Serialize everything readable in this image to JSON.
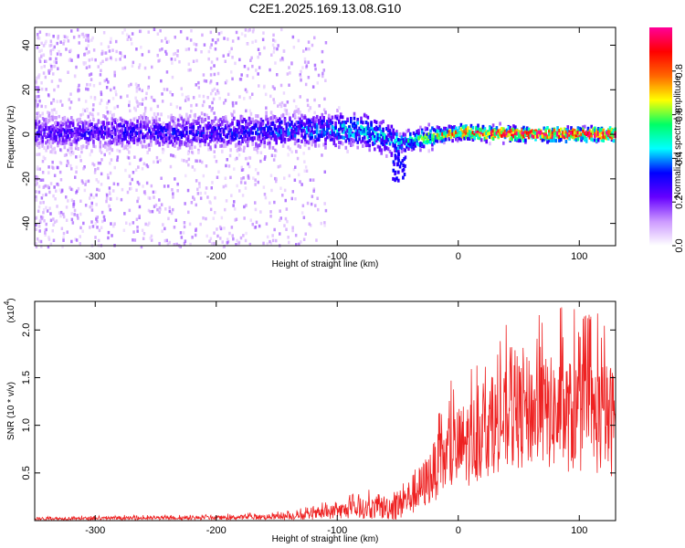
{
  "figure_title": "C2E1.2025.169.13.08.G10",
  "chart_data": [
    {
      "type": "heatmap",
      "title": "C2E1.2025.169.13.08.G10",
      "xlabel": "Height of straight line (km)",
      "ylabel": "Frequency (Hz)",
      "xlim": [
        -350,
        130
      ],
      "ylim": [
        -50,
        48
      ],
      "xticks": [
        -300,
        -200,
        -100,
        0,
        100
      ],
      "yticks": [
        -40,
        -20,
        0,
        20,
        40
      ],
      "colorbar": {
        "label": "Normalized spectral amplitude",
        "range": [
          0.0,
          1.0
        ],
        "ticks": [
          "0.0",
          "0.2",
          "0.4",
          "0.6",
          "0.8"
        ],
        "colors": [
          "#ffffff",
          "#cc99ff",
          "#6600ff",
          "#0000ff",
          "#00ffff",
          "#00ff66",
          "#ffff00",
          "#ff6600",
          "#ff0000",
          "#ff0099"
        ]
      },
      "ridge": {
        "description_values": [
          {
            "x": -350,
            "center": 1,
            "amplitude": 0.25
          },
          {
            "x": -200,
            "center": 1,
            "amplitude": 0.3
          },
          {
            "x": -130,
            "center": 2,
            "amplitude": 0.35
          },
          {
            "x": -80,
            "center": 2,
            "amplitude": 0.45
          },
          {
            "x": -50,
            "center": -4,
            "amplitude": 0.4
          },
          {
            "x": -35,
            "center": -2,
            "amplitude": 0.5
          },
          {
            "x": 0,
            "center": 1,
            "amplitude": 0.8
          },
          {
            "x": 50,
            "center": 0,
            "amplitude": 0.9
          },
          {
            "x": 130,
            "center": 0,
            "amplitude": 0.9
          }
        ]
      }
    },
    {
      "type": "line",
      "xlabel": "Height of straight line (km)",
      "ylabel": "SNR (10 * v/v)",
      "yscale_label": "(x10^4)",
      "yscale_text": "(x10",
      "yscale_exp": "4",
      "xlim": [
        -350,
        130
      ],
      "ylim": [
        0,
        2.3
      ],
      "xticks": [
        -300,
        -200,
        -100,
        0,
        100
      ],
      "yticks": [
        0.5,
        1.0,
        1.5,
        2.0
      ],
      "ytick_labels": [
        "0.5",
        "1.0",
        "1.5",
        "2.0"
      ],
      "color": "#ee2222",
      "series_envelope": [
        {
          "x": -350,
          "mean": 0.02,
          "spread": 0.015
        },
        {
          "x": -200,
          "mean": 0.03,
          "spread": 0.02
        },
        {
          "x": -150,
          "mean": 0.04,
          "spread": 0.03
        },
        {
          "x": -120,
          "mean": 0.06,
          "spread": 0.05
        },
        {
          "x": -100,
          "mean": 0.1,
          "spread": 0.08
        },
        {
          "x": -80,
          "mean": 0.12,
          "spread": 0.1
        },
        {
          "x": -50,
          "mean": 0.15,
          "spread": 0.15
        },
        {
          "x": -30,
          "mean": 0.35,
          "spread": 0.25
        },
        {
          "x": -15,
          "mean": 0.6,
          "spread": 0.35
        },
        {
          "x": 0,
          "mean": 0.75,
          "spread": 0.45
        },
        {
          "x": 30,
          "mean": 1.0,
          "spread": 0.5
        },
        {
          "x": 60,
          "mean": 1.15,
          "spread": 0.6
        },
        {
          "x": 90,
          "mean": 1.1,
          "spread": 0.6
        },
        {
          "x": 130,
          "mean": 1.05,
          "spread": 0.6
        }
      ]
    }
  ]
}
